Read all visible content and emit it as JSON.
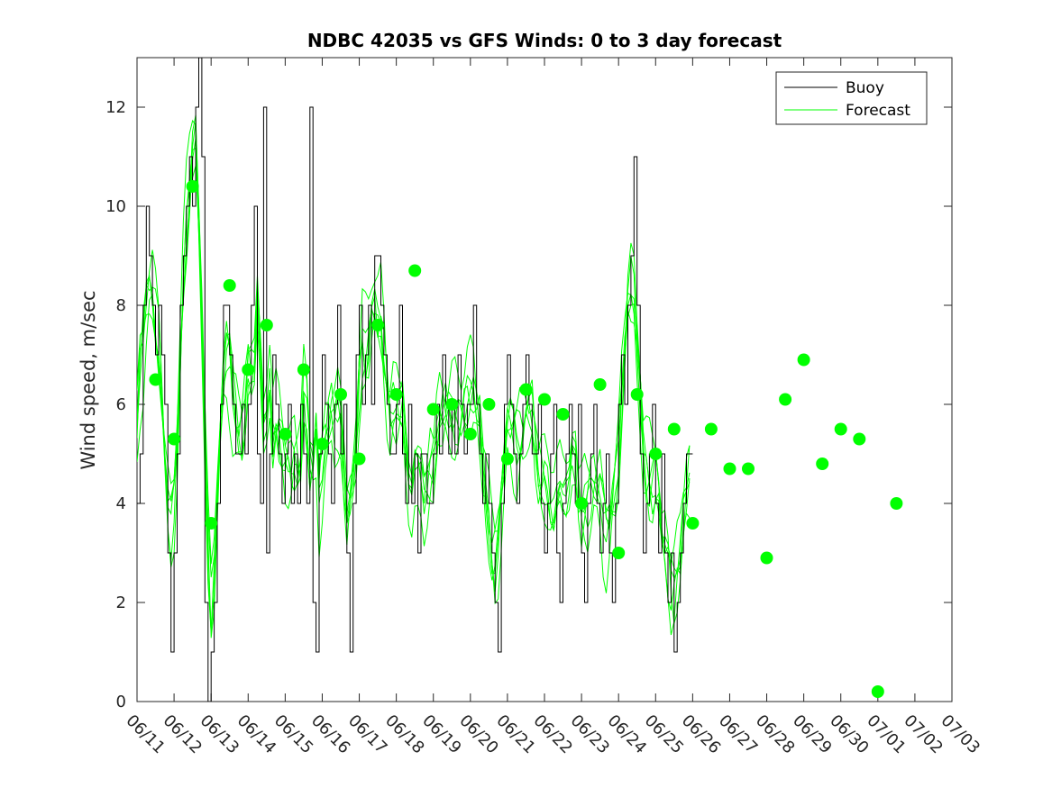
{
  "chart_data": {
    "type": "line",
    "title": "NDBC 42035 vs GFS Winds: 0 to 3 day forecast",
    "xlabel": "",
    "ylabel": "Wind speed, m/sec",
    "xlim": [
      "06/11",
      "07/03"
    ],
    "ylim": [
      0,
      13
    ],
    "yticks": [
      0,
      2,
      4,
      6,
      8,
      10,
      12
    ],
    "xtick_labels": [
      "06/11",
      "06/12",
      "06/13",
      "06/14",
      "06/15",
      "06/16",
      "06/17",
      "06/18",
      "06/19",
      "06/20",
      "06/21",
      "06/22",
      "06/23",
      "06/24",
      "06/25",
      "06/26",
      "06/27",
      "06/28",
      "06/29",
      "06/30",
      "07/01",
      "07/02",
      "07/03"
    ],
    "grid": false,
    "legend_position": "top-right",
    "legend": [
      "Buoy",
      "Forecast"
    ],
    "colors": {
      "buoy": "#000000",
      "forecast": "#00ff00",
      "marker": "#00ff00"
    },
    "series": [
      {
        "name": "Buoy",
        "step_hours": 2,
        "start": "06/11 00:00",
        "values": [
          4,
          5,
          8,
          10,
          9,
          8,
          7,
          8,
          7,
          6,
          3,
          1,
          3,
          5,
          8,
          9,
          10,
          11,
          10,
          12,
          13,
          11,
          2,
          0,
          1,
          2,
          4,
          6,
          8,
          8,
          7,
          6,
          5,
          5,
          6,
          5,
          6,
          8,
          10,
          5,
          4,
          12,
          3,
          5,
          7,
          6,
          5,
          4,
          5,
          6,
          4,
          5,
          4,
          6,
          5,
          4,
          12,
          2,
          1,
          5,
          7,
          6,
          5,
          4,
          6,
          8,
          5,
          6,
          3,
          1,
          4,
          7,
          8,
          6,
          7,
          8,
          6,
          9,
          9,
          8,
          7,
          6,
          5,
          5,
          6,
          8,
          5,
          4,
          6,
          4,
          5,
          3,
          5,
          5,
          4,
          4,
          5,
          6,
          5,
          7,
          6,
          5,
          6,
          5,
          7,
          6,
          5,
          6,
          6,
          8,
          6,
          5,
          4,
          5,
          4,
          3,
          2,
          1,
          4,
          6,
          7,
          6,
          5,
          4,
          5,
          6,
          7,
          6,
          5,
          5,
          6,
          4,
          3,
          4,
          5,
          6,
          3,
          2,
          4,
          5,
          6,
          5,
          4,
          6,
          3,
          2,
          4,
          5,
          6,
          4,
          3,
          4,
          5,
          3,
          2,
          4,
          6,
          7,
          6,
          8,
          9,
          11,
          8,
          5,
          3,
          4,
          5,
          6,
          4,
          3,
          5,
          3,
          2,
          3,
          1,
          2,
          3,
          4,
          5,
          5
        ]
      },
      {
        "name": "Forecast",
        "points": [
          {
            "x": "06/11 12:00",
            "y": 6.5
          },
          {
            "x": "06/12 00:00",
            "y": 5.3
          },
          {
            "x": "06/12 12:00",
            "y": 10.4
          },
          {
            "x": "06/13 00:00",
            "y": 3.6
          },
          {
            "x": "06/13 12:00",
            "y": 8.4
          },
          {
            "x": "06/14 00:00",
            "y": 6.7
          },
          {
            "x": "06/14 12:00",
            "y": 7.6
          },
          {
            "x": "06/15 00:00",
            "y": 5.4
          },
          {
            "x": "06/15 12:00",
            "y": 6.7
          },
          {
            "x": "06/16 00:00",
            "y": 5.2
          },
          {
            "x": "06/16 12:00",
            "y": 6.2
          },
          {
            "x": "06/17 00:00",
            "y": 4.9
          },
          {
            "x": "06/17 12:00",
            "y": 7.6
          },
          {
            "x": "06/18 00:00",
            "y": 6.2
          },
          {
            "x": "06/18 12:00",
            "y": 8.7
          },
          {
            "x": "06/19 00:00",
            "y": 5.9
          },
          {
            "x": "06/19 12:00",
            "y": 6.0
          },
          {
            "x": "06/20 00:00",
            "y": 5.4
          },
          {
            "x": "06/20 12:00",
            "y": 6.0
          },
          {
            "x": "06/21 00:00",
            "y": 4.9
          },
          {
            "x": "06/21 12:00",
            "y": 6.3
          },
          {
            "x": "06/22 00:00",
            "y": 6.1
          },
          {
            "x": "06/22 12:00",
            "y": 5.8
          },
          {
            "x": "06/23 00:00",
            "y": 4.0
          },
          {
            "x": "06/23 12:00",
            "y": 6.4
          },
          {
            "x": "06/24 00:00",
            "y": 3.0
          },
          {
            "x": "06/24 12:00",
            "y": 6.2
          },
          {
            "x": "06/25 00:00",
            "y": 5.0
          },
          {
            "x": "06/25 12:00",
            "y": 5.5
          },
          {
            "x": "06/26 00:00",
            "y": 3.6
          },
          {
            "x": "06/26 12:00",
            "y": 5.5
          },
          {
            "x": "06/27 00:00",
            "y": 4.7
          },
          {
            "x": "06/27 12:00",
            "y": 4.7
          },
          {
            "x": "06/28 00:00",
            "y": 2.9
          },
          {
            "x": "06/28 12:00",
            "y": 6.1
          },
          {
            "x": "06/29 00:00",
            "y": 6.9
          },
          {
            "x": "06/29 12:00",
            "y": 4.8
          },
          {
            "x": "06/30 00:00",
            "y": 5.5
          },
          {
            "x": "06/30 12:00",
            "y": 5.3
          },
          {
            "x": "07/01 00:00",
            "y": 0.2
          },
          {
            "x": "07/01 12:00",
            "y": 4.0
          }
        ]
      }
    ]
  }
}
